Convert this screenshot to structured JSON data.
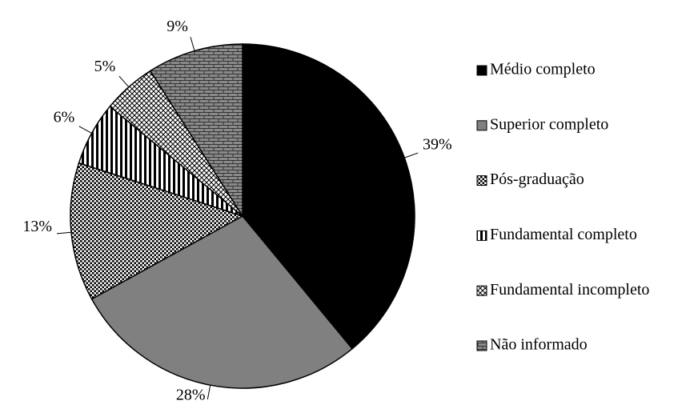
{
  "chart_data": {
    "type": "pie",
    "categories": [
      "Médio completo",
      "Superior completo",
      "Pós-graduação",
      "Fundamental completo",
      "Fundamental incompleto",
      "Não informado"
    ],
    "values": [
      39,
      28,
      13,
      6,
      5,
      9
    ],
    "value_labels": [
      "39%",
      "28%",
      "13%",
      "6%",
      "5%",
      "9%"
    ],
    "fills": [
      "#000000",
      "#808080",
      "url(#dots)",
      "url(#vstripes)",
      "url(#cross)",
      "url(#bricks)"
    ],
    "start_angle": 0,
    "direction": "clockwise",
    "legend": "right"
  }
}
